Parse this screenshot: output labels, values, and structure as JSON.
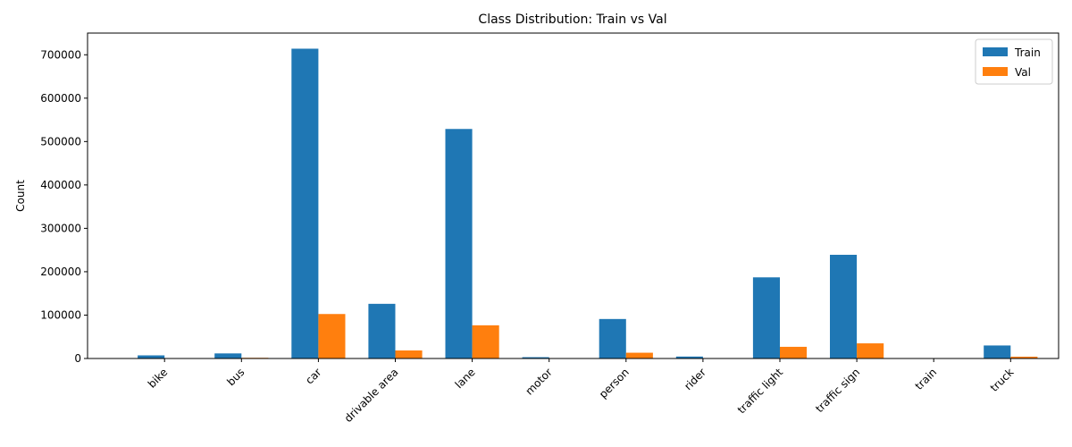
{
  "chart_data": {
    "type": "bar",
    "title": "Class Distribution: Train vs Val",
    "xlabel": "",
    "ylabel": "Count",
    "categories": [
      "bike",
      "bus",
      "car",
      "drivable area",
      "lane",
      "motor",
      "person",
      "rider",
      "traffic light",
      "traffic sign",
      "train",
      "truck"
    ],
    "series": [
      {
        "name": "Train",
        "color": "#1f77b4",
        "values": [
          7200,
          11700,
          714000,
          126000,
          529000,
          3000,
          91000,
          4500,
          187000,
          239000,
          140,
          30000
        ]
      },
      {
        "name": "Val",
        "color": "#ff7f0e",
        "values": [
          1000,
          1600,
          102500,
          18500,
          76500,
          450,
          13300,
          650,
          26900,
          34900,
          15,
          4200
        ]
      }
    ],
    "ylim": [
      0,
      750000
    ],
    "yticks": [
      "0",
      "100000",
      "200000",
      "300000",
      "400000",
      "500000",
      "600000",
      "700000"
    ],
    "legend": "top-right",
    "grid": false
  }
}
